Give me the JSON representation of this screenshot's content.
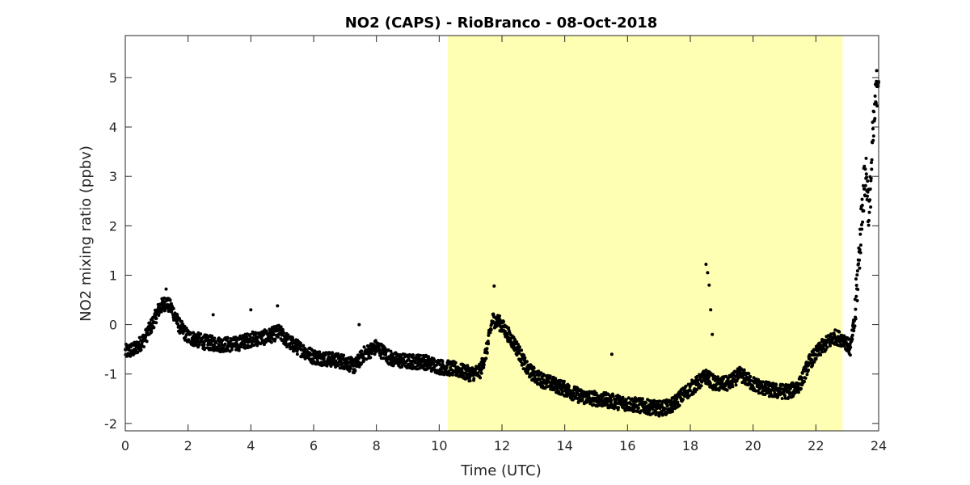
{
  "chart_data": {
    "type": "scatter",
    "title": "NO2 (CAPS) - RioBranco - 08-Oct-2018",
    "xlabel": "Time (UTC)",
    "ylabel": "NO2 mixing ratio (ppbv)",
    "xlim": [
      0,
      24
    ],
    "ylim": [
      -2.15,
      5.85
    ],
    "xticks": [
      0,
      2,
      4,
      6,
      8,
      10,
      12,
      14,
      16,
      18,
      20,
      22,
      24
    ],
    "yticks": [
      -2,
      -1,
      0,
      1,
      2,
      3,
      4,
      5
    ],
    "grid": false,
    "legend": "none",
    "shaded_interval": {
      "x_start": 10.27,
      "x_end": 22.85,
      "color": "#ffffb3"
    },
    "marker_color": "#000000",
    "series": [
      {
        "trend": [
          [
            0.0,
            -0.55
          ],
          [
            0.3,
            -0.5
          ],
          [
            0.6,
            -0.3
          ],
          [
            0.85,
            0.0
          ],
          [
            1.1,
            0.35
          ],
          [
            1.3,
            0.45
          ],
          [
            1.5,
            0.3
          ],
          [
            1.7,
            0.0
          ],
          [
            2.0,
            -0.25
          ],
          [
            2.5,
            -0.35
          ],
          [
            3.0,
            -0.4
          ],
          [
            3.5,
            -0.4
          ],
          [
            4.0,
            -0.3
          ],
          [
            4.5,
            -0.25
          ],
          [
            4.9,
            -0.15
          ],
          [
            5.2,
            -0.35
          ],
          [
            5.6,
            -0.5
          ],
          [
            6.0,
            -0.65
          ],
          [
            6.5,
            -0.7
          ],
          [
            7.0,
            -0.75
          ],
          [
            7.3,
            -0.85
          ],
          [
            7.6,
            -0.6
          ],
          [
            8.0,
            -0.45
          ],
          [
            8.5,
            -0.7
          ],
          [
            9.0,
            -0.75
          ],
          [
            9.5,
            -0.75
          ],
          [
            10.0,
            -0.85
          ],
          [
            10.5,
            -0.9
          ],
          [
            11.0,
            -1.0
          ],
          [
            11.3,
            -0.95
          ],
          [
            11.5,
            -0.55
          ],
          [
            11.7,
            0.1
          ],
          [
            11.9,
            0.05
          ],
          [
            12.2,
            -0.2
          ],
          [
            12.5,
            -0.5
          ],
          [
            12.8,
            -0.9
          ],
          [
            13.2,
            -1.1
          ],
          [
            13.6,
            -1.2
          ],
          [
            14.0,
            -1.3
          ],
          [
            14.5,
            -1.45
          ],
          [
            15.0,
            -1.5
          ],
          [
            15.5,
            -1.55
          ],
          [
            16.0,
            -1.6
          ],
          [
            16.5,
            -1.65
          ],
          [
            17.0,
            -1.7
          ],
          [
            17.4,
            -1.65
          ],
          [
            17.8,
            -1.4
          ],
          [
            18.2,
            -1.2
          ],
          [
            18.5,
            -1.05
          ],
          [
            18.8,
            -1.2
          ],
          [
            19.2,
            -1.2
          ],
          [
            19.6,
            -1.0
          ],
          [
            20.0,
            -1.2
          ],
          [
            20.4,
            -1.3
          ],
          [
            20.8,
            -1.35
          ],
          [
            21.2,
            -1.35
          ],
          [
            21.5,
            -1.2
          ],
          [
            21.8,
            -0.75
          ],
          [
            22.2,
            -0.45
          ],
          [
            22.6,
            -0.25
          ],
          [
            22.9,
            -0.3
          ],
          [
            23.1,
            -0.5
          ],
          [
            23.25,
            0.2
          ],
          [
            23.4,
            1.6
          ],
          [
            23.5,
            2.6
          ],
          [
            23.6,
            3.1
          ],
          [
            23.7,
            2.2
          ],
          [
            23.8,
            3.6
          ],
          [
            23.9,
            4.5
          ],
          [
            24.0,
            5.2
          ]
        ],
        "spikes": [
          [
            1.3,
            0.72
          ],
          [
            2.8,
            0.2
          ],
          [
            4.0,
            0.3
          ],
          [
            4.85,
            0.38
          ],
          [
            7.45,
            0.0
          ],
          [
            11.75,
            0.78
          ],
          [
            15.5,
            -0.6
          ],
          [
            18.5,
            1.22
          ],
          [
            18.55,
            1.05
          ],
          [
            18.6,
            0.8
          ],
          [
            18.65,
            0.3
          ],
          [
            18.7,
            -0.2
          ]
        ]
      }
    ]
  }
}
